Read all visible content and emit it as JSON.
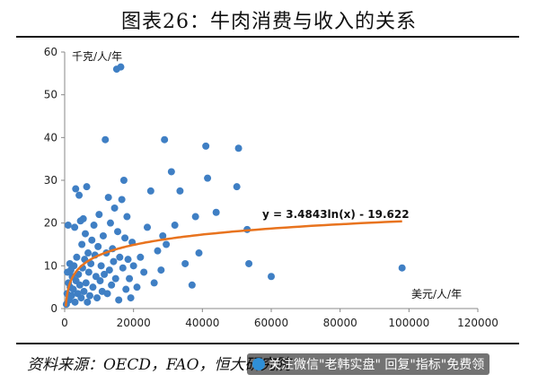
{
  "title": "图表26：牛肉消费与收入的关系",
  "source": "资料来源：OECD，FAO，恒大研究院",
  "watermark": "关注微信\"老韩实盘\" 回复\"指标\"免费领",
  "chart_data": {
    "type": "scatter",
    "title": "图表26：牛肉消费与收入的关系",
    "xlabel": "美元/人/年",
    "ylabel": "千克/人/年",
    "xlim": [
      0,
      120000
    ],
    "ylim": [
      0,
      60
    ],
    "xticks": [
      "0",
      "20000",
      "40000",
      "60000",
      "80000",
      "100000",
      "120000"
    ],
    "yticks": [
      "0",
      "10",
      "20",
      "30",
      "40",
      "50",
      "60"
    ],
    "grid": false,
    "colors": {
      "points": "#3f7fc4",
      "trend": "#e8731e"
    },
    "trendline": {
      "equation": "y = 3.4843ln(x) - 19.622",
      "a": 3.4843,
      "b": -19.622,
      "x_range": [
        320,
        98000
      ]
    },
    "points": [
      {
        "x": 500,
        "y": 1.0
      },
      {
        "x": 700,
        "y": 3.5
      },
      {
        "x": 800,
        "y": 8.5
      },
      {
        "x": 1000,
        "y": 19.5
      },
      {
        "x": 1100,
        "y": 6.0
      },
      {
        "x": 1300,
        "y": 2.0
      },
      {
        "x": 1500,
        "y": 10.5
      },
      {
        "x": 1600,
        "y": 5.0
      },
      {
        "x": 1800,
        "y": 9.0
      },
      {
        "x": 2000,
        "y": 3.0
      },
      {
        "x": 2200,
        "y": 7.5
      },
      {
        "x": 2500,
        "y": 4.5
      },
      {
        "x": 2700,
        "y": 10.0
      },
      {
        "x": 2900,
        "y": 19.0
      },
      {
        "x": 3000,
        "y": 1.5
      },
      {
        "x": 3200,
        "y": 28.0
      },
      {
        "x": 3300,
        "y": 6.5
      },
      {
        "x": 3500,
        "y": 12.0
      },
      {
        "x": 3800,
        "y": 3.5
      },
      {
        "x": 4000,
        "y": 8.0
      },
      {
        "x": 4200,
        "y": 26.5
      },
      {
        "x": 4400,
        "y": 5.5
      },
      {
        "x": 4600,
        "y": 20.5
      },
      {
        "x": 4800,
        "y": 2.5
      },
      {
        "x": 5000,
        "y": 15.0
      },
      {
        "x": 5200,
        "y": 9.5
      },
      {
        "x": 5400,
        "y": 21.0
      },
      {
        "x": 5600,
        "y": 4.0
      },
      {
        "x": 5800,
        "y": 11.5
      },
      {
        "x": 6000,
        "y": 17.5
      },
      {
        "x": 6200,
        "y": 6.0
      },
      {
        "x": 6400,
        "y": 28.5
      },
      {
        "x": 6600,
        "y": 1.5
      },
      {
        "x": 6800,
        "y": 13.0
      },
      {
        "x": 7000,
        "y": 8.5
      },
      {
        "x": 7300,
        "y": 3.0
      },
      {
        "x": 7600,
        "y": 10.5
      },
      {
        "x": 7900,
        "y": 16.0
      },
      {
        "x": 8200,
        "y": 5.0
      },
      {
        "x": 8500,
        "y": 19.5
      },
      {
        "x": 8800,
        "y": 12.5
      },
      {
        "x": 9100,
        "y": 7.5
      },
      {
        "x": 9400,
        "y": 2.5
      },
      {
        "x": 9700,
        "y": 14.5
      },
      {
        "x": 10000,
        "y": 22.0
      },
      {
        "x": 10300,
        "y": 6.5
      },
      {
        "x": 10600,
        "y": 10.0
      },
      {
        "x": 10900,
        "y": 4.0
      },
      {
        "x": 11200,
        "y": 17.0
      },
      {
        "x": 11500,
        "y": 8.0
      },
      {
        "x": 11800,
        "y": 39.5
      },
      {
        "x": 12100,
        "y": 13.0
      },
      {
        "x": 12400,
        "y": 3.5
      },
      {
        "x": 12700,
        "y": 26.0
      },
      {
        "x": 13000,
        "y": 9.0
      },
      {
        "x": 13300,
        "y": 20.0
      },
      {
        "x": 13600,
        "y": 5.5
      },
      {
        "x": 13900,
        "y": 14.0
      },
      {
        "x": 14200,
        "y": 11.0
      },
      {
        "x": 14500,
        "y": 23.5
      },
      {
        "x": 14800,
        "y": 7.0
      },
      {
        "x": 15100,
        "y": 56.0
      },
      {
        "x": 15400,
        "y": 18.0
      },
      {
        "x": 15700,
        "y": 2.0
      },
      {
        "x": 16000,
        "y": 12.0
      },
      {
        "x": 16300,
        "y": 56.5
      },
      {
        "x": 16600,
        "y": 25.5
      },
      {
        "x": 16900,
        "y": 9.5
      },
      {
        "x": 17200,
        "y": 30.0
      },
      {
        "x": 17500,
        "y": 16.5
      },
      {
        "x": 17800,
        "y": 4.5
      },
      {
        "x": 18100,
        "y": 21.5
      },
      {
        "x": 18400,
        "y": 11.5
      },
      {
        "x": 18800,
        "y": 7.0
      },
      {
        "x": 19200,
        "y": 2.5
      },
      {
        "x": 19600,
        "y": 15.5
      },
      {
        "x": 20000,
        "y": 10.0
      },
      {
        "x": 21000,
        "y": 5.0
      },
      {
        "x": 22000,
        "y": 12.0
      },
      {
        "x": 23000,
        "y": 8.5
      },
      {
        "x": 24000,
        "y": 19.0
      },
      {
        "x": 25000,
        "y": 27.5
      },
      {
        "x": 26000,
        "y": 6.0
      },
      {
        "x": 27000,
        "y": 13.5
      },
      {
        "x": 28000,
        "y": 9.0
      },
      {
        "x": 28500,
        "y": 17.0
      },
      {
        "x": 29000,
        "y": 39.5
      },
      {
        "x": 29500,
        "y": 15.0
      },
      {
        "x": 31000,
        "y": 32.0
      },
      {
        "x": 32000,
        "y": 19.5
      },
      {
        "x": 33500,
        "y": 27.5
      },
      {
        "x": 35000,
        "y": 10.5
      },
      {
        "x": 37000,
        "y": 5.5
      },
      {
        "x": 38000,
        "y": 21.5
      },
      {
        "x": 39000,
        "y": 13.0
      },
      {
        "x": 41000,
        "y": 38.0
      },
      {
        "x": 41500,
        "y": 30.5
      },
      {
        "x": 44000,
        "y": 22.5
      },
      {
        "x": 50000,
        "y": 28.5
      },
      {
        "x": 50500,
        "y": 37.5
      },
      {
        "x": 53000,
        "y": 18.5
      },
      {
        "x": 53500,
        "y": 10.5
      },
      {
        "x": 60000,
        "y": 7.5
      },
      {
        "x": 98000,
        "y": 9.5
      }
    ]
  }
}
